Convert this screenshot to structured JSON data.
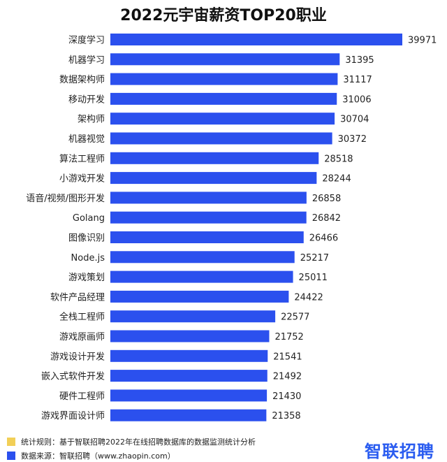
{
  "title": "2022元宇宙薪资TOP20职业",
  "chart_data": {
    "type": "bar",
    "orientation": "horizontal",
    "title": "2022元宇宙薪资TOP20职业",
    "categories": [
      "深度学习",
      "机器学习",
      "数据架构师",
      "移动开发",
      "架构师",
      "机器视觉",
      "算法工程师",
      "小游戏开发",
      "语音/视频/图形开发",
      "Golang",
      "图像识别",
      "Node.js",
      "游戏策划",
      "软件产品经理",
      "全栈工程师",
      "游戏原画师",
      "游戏设计开发",
      "嵌入式软件开发",
      "硬件工程师",
      "游戏界面设计师"
    ],
    "values": [
      39971,
      31395,
      31117,
      31006,
      30704,
      30372,
      28518,
      28244,
      26858,
      26842,
      26466,
      25217,
      25011,
      24422,
      22577,
      21752,
      21541,
      21492,
      21430,
      21358
    ],
    "bar_color": "#2b50ee",
    "xlim": [
      0,
      40000
    ],
    "grid": false,
    "legend": "bottom-left"
  },
  "footer": {
    "note1": {
      "text": "统计规则：基于智联招聘2022年在线招聘数据库的数据监测统计分析",
      "color": "#f2cf57"
    },
    "note2": {
      "text": "数据来源：智联招聘（www.zhaopin.com）",
      "color": "#2b50ee"
    },
    "brand": "智联招聘"
  }
}
